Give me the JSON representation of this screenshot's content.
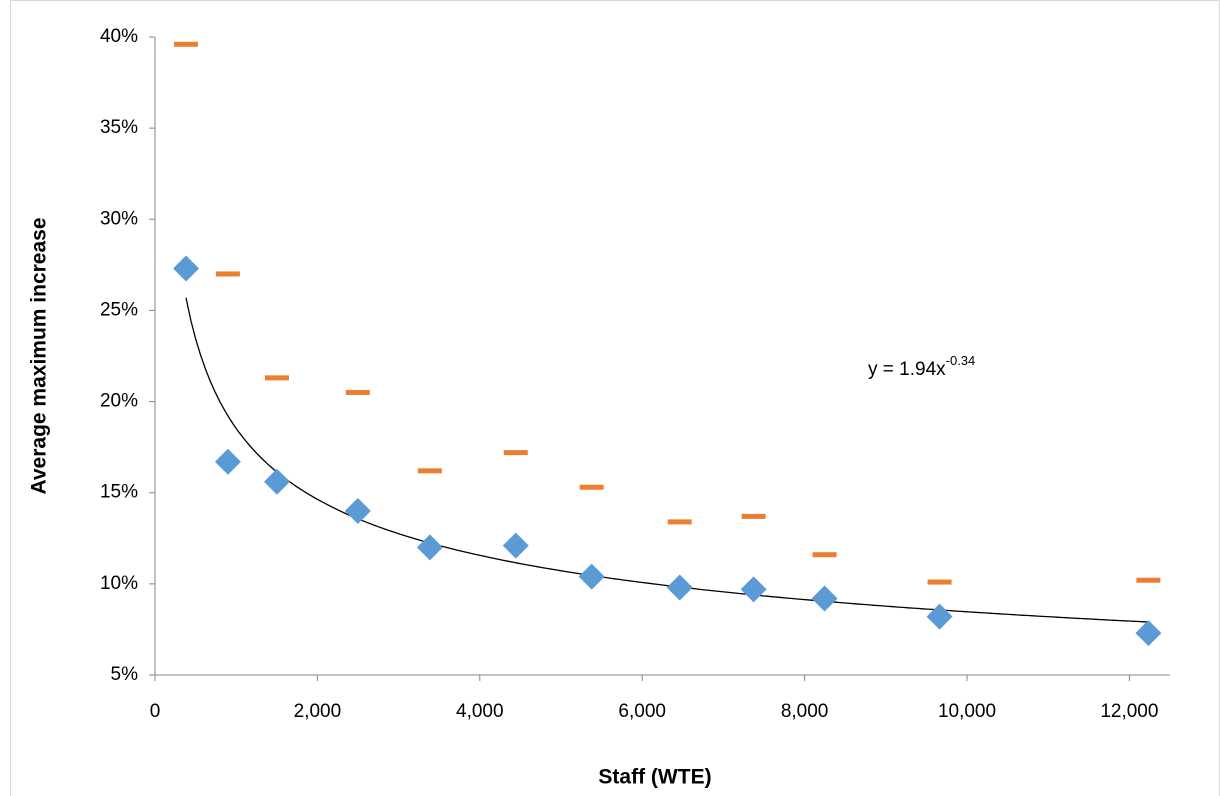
{
  "chart_data": {
    "type": "scatter",
    "x_label": "Staff (WTE)",
    "y_label": "Average maximum increase",
    "x": [
      382,
      898,
      1502,
      2498,
      3385,
      4443,
      5378,
      6462,
      7372,
      8246,
      9662,
      12234
    ],
    "series": [
      {
        "color": "#5b9bd5",
        "marker": "diamond",
        "values": [
          27.3,
          16.7,
          15.6,
          14.0,
          12.0,
          12.1,
          10.4,
          9.8,
          9.7,
          9.2,
          8.2,
          7.3
        ]
      },
      {
        "color": "#ed7d31",
        "marker": "dash",
        "values": [
          39.6,
          27.0,
          21.3,
          20.5,
          16.2,
          17.2,
          15.3,
          13.4,
          13.7,
          11.6,
          10.1,
          10.2
        ]
      }
    ],
    "trendline": {
      "type": "power",
      "a": 1.94,
      "b": -0.34,
      "color": "#000000"
    },
    "annotation": {
      "text": "y = 1.94x",
      "superscript": "-0.34"
    },
    "xlim": [
      0,
      12500
    ],
    "xticks": [
      0,
      {
        "value": 2000,
        "label": "2,000"
      },
      {
        "value": 4000,
        "label": "4,000"
      },
      {
        "value": 6000,
        "label": "6,000"
      },
      {
        "value": 8000,
        "label": "8,000"
      },
      {
        "value": 10000,
        "label": "10,000"
      },
      {
        "value": 12000,
        "label": "12,000"
      }
    ],
    "ylim": [
      5,
      40
    ],
    "yticks": [
      {
        "value": 5,
        "label": "5%"
      },
      {
        "value": 10,
        "label": "10%"
      },
      {
        "value": 15,
        "label": "15%"
      },
      {
        "value": 20,
        "label": "20%"
      },
      {
        "value": 25,
        "label": "25%"
      },
      {
        "value": 30,
        "label": "30%"
      },
      {
        "value": 35,
        "label": "35%"
      },
      {
        "value": 40,
        "label": "40%"
      }
    ],
    "grid": false
  }
}
